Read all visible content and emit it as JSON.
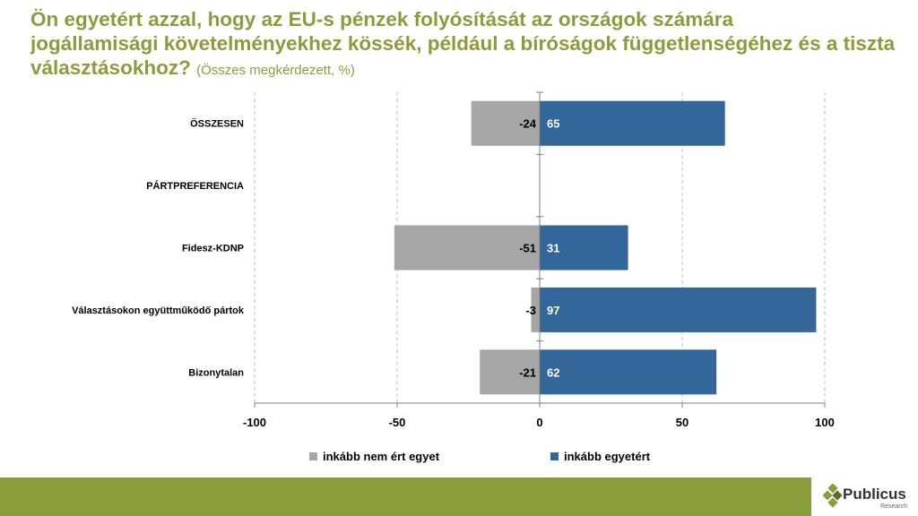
{
  "title": {
    "line1": "Ön egyetért azzal, hogy az EU-s pénzek folyósítását az országok számára",
    "line2": "jogállamisági  követelményekhez kössék, például a bíróságok függetlenségéhez és a tiszta",
    "line3": "választásokhoz?",
    "subtitle": "(Összes megkérdezett, %)"
  },
  "chart_data": {
    "type": "bar",
    "orientation": "horizontal",
    "stacked": true,
    "categories": [
      "ÖSSZESEN",
      "PÁRTPREFERENCIA",
      "Fidesz-KDNP",
      "Választásokon együttműködő pártok",
      "Bizonytalan"
    ],
    "series": [
      {
        "name": "inkább nem ért egyet",
        "values": [
          -24,
          null,
          -51,
          -3,
          -21
        ],
        "color": "#a6a6a6"
      },
      {
        "name": "inkább egyetért",
        "values": [
          65,
          null,
          31,
          97,
          62
        ],
        "color": "#336699"
      }
    ],
    "xlim": [
      -100,
      100
    ],
    "xticks": [
      -100,
      -50,
      0,
      50,
      100
    ],
    "tick_labels": [
      "-100",
      "-50",
      "0",
      "50",
      "100"
    ],
    "grid": "vertical dashed",
    "legend_position": "bottom"
  },
  "legend": {
    "disagree": "inkább nem ért egyet",
    "agree": "inkább egyetért"
  },
  "logo": {
    "name": "Publicus",
    "sub": "Research"
  }
}
